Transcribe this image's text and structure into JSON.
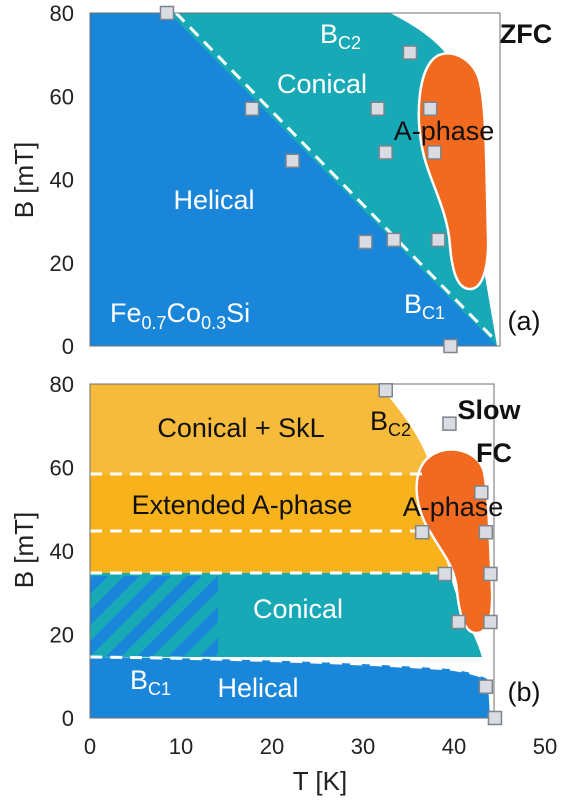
{
  "colors": {
    "helical": "#1a86d9",
    "conical": "#17aab6",
    "aphase": "#f26a1f",
    "skl": "#f7bb3c",
    "extended": "#f7b21c",
    "frame": "#6f6f6f"
  },
  "chart_data": [
    {
      "type": "area",
      "panel_tag": "(a)",
      "protocol": "ZFC",
      "ylabel": "B [mT]",
      "xlim": [
        0,
        50
      ],
      "ylim": [
        0,
        80
      ],
      "yticks": [
        "0",
        "20",
        "40",
        "60",
        "80"
      ],
      "regions": {
        "helical": "Helical",
        "conical": "Conical",
        "aphase": "A-phase",
        "compound_parts": [
          "Fe",
          "0.7",
          "Co",
          "0.3",
          "Si"
        ]
      },
      "boundary_labels": {
        "bc2_main": "B",
        "bc2_sub": "C2",
        "bc1_main": "B",
        "bc1_sub": "C1"
      },
      "bc1_points": [
        [
          9.5,
          80
        ],
        [
          20,
          57
        ],
        [
          25,
          44.5
        ],
        [
          34,
          25
        ],
        [
          44.5,
          0
        ]
      ],
      "bc2_points": [
        [
          39.5,
          70.5
        ]
      ],
      "aphase_points": [
        [
          35.5,
          57
        ],
        [
          42,
          57
        ],
        [
          36.5,
          46.5
        ],
        [
          42.5,
          46.5
        ],
        [
          37.5,
          25.5
        ],
        [
          43,
          25.5
        ]
      ]
    },
    {
      "type": "area",
      "panel_tag": "(b)",
      "protocol": [
        "Slow",
        "FC"
      ],
      "xlabel": "T [K]",
      "ylabel": "B [mT]",
      "xlim": [
        0,
        50
      ],
      "ylim": [
        0,
        80
      ],
      "xticks": [
        "0",
        "10",
        "20",
        "30",
        "40",
        "50"
      ],
      "yticks": [
        "0",
        "20",
        "40",
        "60",
        "80"
      ],
      "regions": {
        "conical_skl": "Conical + SkL",
        "extended_aphase": "Extended A-phase",
        "aphase": "A-phase",
        "conical": "Conical",
        "helical": "Helical"
      },
      "boundary_labels": {
        "bc2_main": "B",
        "bc2_sub": "C2",
        "bc1_main": "B",
        "bc1_sub": "C1"
      },
      "bc2_points": [
        [
          32.5,
          78.5
        ],
        [
          39.5,
          70.5
        ]
      ],
      "bc1_points": [
        [
          43.5,
          7.5
        ],
        [
          44.5,
          0
        ]
      ],
      "aphase_points": [
        [
          43,
          54
        ],
        [
          36.5,
          44.5
        ],
        [
          43.5,
          44.5
        ],
        [
          39,
          34.5
        ],
        [
          44,
          34.5
        ],
        [
          40.5,
          23
        ],
        [
          44,
          23
        ]
      ]
    }
  ]
}
